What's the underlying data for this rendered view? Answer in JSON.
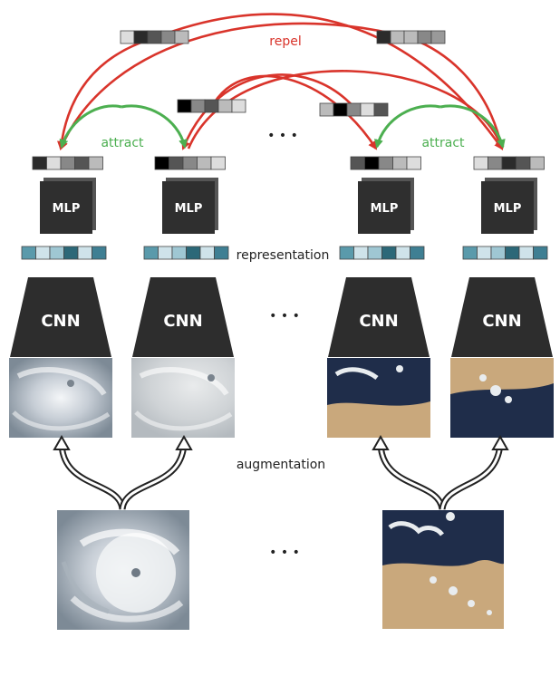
{
  "labels": {
    "repel": "repel",
    "attract_left": "attract",
    "attract_right": "attract",
    "representation": "representation",
    "augmentation": "augmentation",
    "ellipsis": "• • •"
  },
  "columns": [
    {
      "mlp": "MLP",
      "cnn": "CNN",
      "view": "hurricane-view-1"
    },
    {
      "mlp": "MLP",
      "cnn": "CNN",
      "view": "hurricane-view-2"
    },
    {
      "mlp": "MLP",
      "cnn": "CNN",
      "view": "coast-view-1"
    },
    {
      "mlp": "MLP",
      "cnn": "CNN",
      "view": "coast-view-2"
    }
  ],
  "sources": [
    {
      "name": "hurricane-source-image"
    },
    {
      "name": "coast-source-image"
    }
  ],
  "colors": {
    "repel": "#d9342b",
    "attract": "#4caf50",
    "block": "#333333",
    "projection_cells": [
      "#2b2b2b",
      "#ffffff",
      "#555555",
      "#888888",
      "#bbbbbb",
      "#000000",
      "#dddddd",
      "#999999"
    ],
    "representation_cells": [
      "#3f7f93",
      "#9fc7d3",
      "#cfe3ea",
      "#2c6878",
      "#5a9aab",
      "#e6f1f4"
    ],
    "ocean": "#1f2d4a",
    "sand": "#c9a87c",
    "cloud": "#e8ecef"
  }
}
